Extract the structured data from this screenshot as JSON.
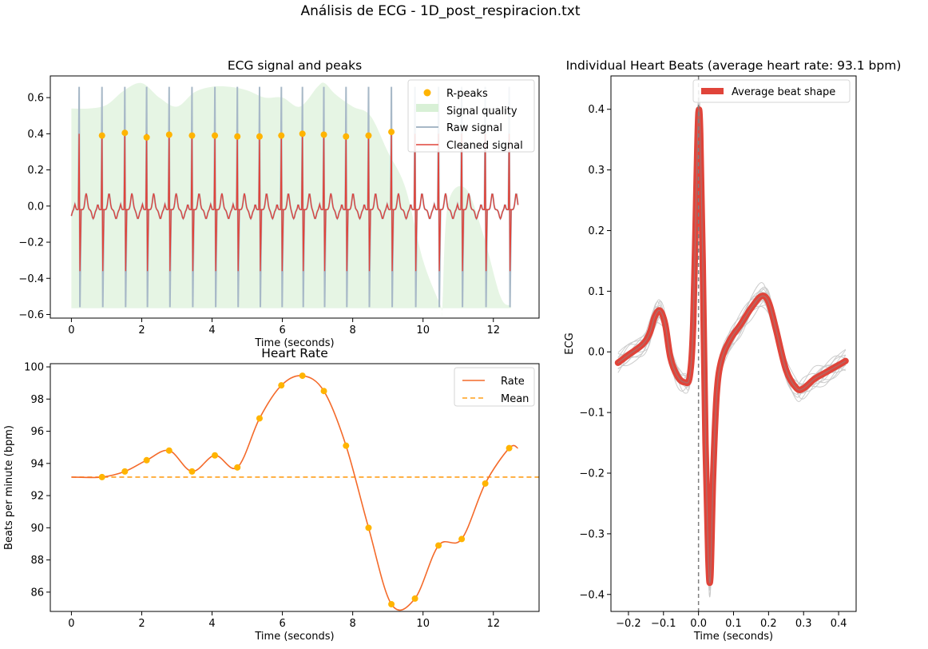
{
  "figure": {
    "suptitle": "Análisis de ECG - 1D_post_respiracion.txt"
  },
  "chart_data": [
    {
      "id": "ecg",
      "type": "line",
      "title": "ECG signal and peaks",
      "xlabel": "Time (seconds)",
      "ylabel": "",
      "xlim": [
        -0.6,
        13.3
      ],
      "ylim": [
        -0.62,
        0.72
      ],
      "xticks": [
        0,
        2,
        4,
        6,
        8,
        10,
        12
      ],
      "yticks": [
        -0.6,
        -0.4,
        -0.2,
        0.0,
        0.2,
        0.4,
        0.6
      ],
      "ytick_labels": [
        "−0.6",
        "−0.4",
        "−0.2",
        "0.0",
        "0.2",
        "0.4",
        "0.6"
      ],
      "legend": {
        "position": "top-right",
        "entries": [
          "R-peaks",
          "Signal quality",
          "Raw signal",
          "Cleaned signal"
        ]
      },
      "r_peaks": {
        "name": "R-peaks",
        "color": "#ffb400",
        "x": [
          0.87,
          1.52,
          2.14,
          2.78,
          3.43,
          4.08,
          4.72,
          5.35,
          5.97,
          6.57,
          7.18,
          7.81,
          8.45,
          9.1
        ],
        "y": [
          0.39,
          0.405,
          0.38,
          0.395,
          0.39,
          0.39,
          0.385,
          0.385,
          0.39,
          0.4,
          0.395,
          0.385,
          0.39,
          0.41
        ]
      },
      "beat_times": [
        0.22,
        0.87,
        1.52,
        2.14,
        2.78,
        3.43,
        4.08,
        4.72,
        5.35,
        5.97,
        6.57,
        7.18,
        7.81,
        8.45,
        9.1,
        9.77,
        10.44,
        11.1,
        11.77,
        12.45
      ],
      "signal_quality": {
        "name": "Signal quality",
        "color": "#d8f0d6",
        "x": [
          0,
          0.5,
          1.0,
          1.5,
          2.0,
          2.5,
          3.0,
          3.5,
          4.0,
          4.5,
          5.0,
          5.5,
          6.0,
          6.5,
          7.0,
          7.2,
          7.5,
          8.0,
          8.5,
          9.0,
          9.5,
          10.0,
          10.5,
          10.55,
          10.7,
          11.2,
          11.7,
          12.2,
          12.5
        ],
        "y": [
          0.54,
          0.54,
          0.56,
          0.64,
          0.68,
          0.6,
          0.55,
          0.63,
          0.66,
          0.66,
          0.64,
          0.6,
          0.6,
          0.55,
          0.66,
          0.68,
          0.62,
          0.55,
          0.5,
          0.3,
          0.1,
          -0.3,
          -0.55,
          -0.56,
          0.0,
          0.1,
          -0.15,
          -0.5,
          -0.55
        ],
        "baseline": -0.565
      },
      "raw_signal": {
        "name": "Raw signal",
        "color": "#a7b8c7",
        "peak": 0.66,
        "trough": -0.56
      },
      "cleaned_signal": {
        "name": "Cleaned signal",
        "color": "#e0443a",
        "peak": 0.4,
        "trough": -0.36
      }
    },
    {
      "id": "hr",
      "type": "line",
      "title": "Heart Rate",
      "xlabel": "Time (seconds)",
      "ylabel": "Beats per minute (bpm)",
      "xlim": [
        -0.6,
        13.3
      ],
      "ylim": [
        84.8,
        100.2
      ],
      "xticks": [
        0,
        2,
        4,
        6,
        8,
        10,
        12
      ],
      "yticks": [
        86,
        88,
        90,
        92,
        94,
        96,
        98,
        100
      ],
      "legend": {
        "position": "top-right",
        "entries": [
          "Rate",
          "Mean"
        ]
      },
      "rate": {
        "name": "Rate",
        "color": "#f46a2a",
        "x": [
          0,
          0.87,
          1.52,
          2.14,
          2.78,
          3.43,
          4.08,
          4.72,
          5.35,
          5.97,
          6.57,
          7.18,
          7.81,
          8.45,
          9.1,
          9.77,
          10.44,
          11.1,
          11.77,
          12.45,
          12.7
        ],
        "y": [
          93.15,
          93.15,
          93.5,
          94.2,
          94.8,
          93.5,
          94.5,
          93.75,
          96.8,
          98.85,
          99.45,
          98.5,
          95.1,
          90.0,
          85.25,
          85.6,
          88.9,
          89.3,
          92.75,
          94.95,
          94.95
        ]
      },
      "points": {
        "color": "#ffb400",
        "x": [
          0.87,
          1.52,
          2.14,
          2.78,
          3.43,
          4.08,
          4.72,
          5.35,
          5.97,
          6.57,
          7.18,
          7.81,
          8.45,
          9.1,
          9.77,
          10.44,
          11.1,
          11.77,
          12.45
        ],
        "y": [
          93.15,
          93.5,
          94.2,
          94.8,
          93.5,
          94.5,
          93.75,
          96.8,
          98.85,
          99.45,
          98.5,
          95.1,
          90.0,
          85.25,
          85.6,
          88.9,
          89.3,
          92.75,
          94.95
        ]
      },
      "mean": {
        "name": "Mean",
        "color": "#ff9f1a",
        "value": 93.15
      }
    },
    {
      "id": "beats",
      "type": "line",
      "title": "Individual Heart Beats (average heart rate: 93.1 bpm)",
      "xlabel": "Time (seconds)",
      "ylabel": "ECG",
      "xlim": [
        -0.25,
        0.45
      ],
      "ylim": [
        -0.428,
        0.455
      ],
      "xticks": [
        -0.2,
        -0.1,
        0.0,
        0.1,
        0.2,
        0.3,
        0.4
      ],
      "xtick_labels": [
        "−0.2",
        "−0.1",
        "0.0",
        "0.1",
        "0.2",
        "0.3",
        "0.4"
      ],
      "yticks": [
        -0.4,
        -0.3,
        -0.2,
        -0.1,
        0.0,
        0.1,
        0.2,
        0.3,
        0.4
      ],
      "ytick_labels": [
        "−0.4",
        "−0.3",
        "−0.2",
        "−0.1",
        "0.0",
        "0.1",
        "0.2",
        "0.3",
        "0.4"
      ],
      "legend": {
        "position": "top-right",
        "entries": [
          "Average beat shape"
        ]
      },
      "vline_x": 0.0,
      "average": {
        "name": "Average beat shape",
        "color": "#e0443a",
        "x": [
          -0.23,
          -0.2,
          -0.16,
          -0.14,
          -0.125,
          -0.11,
          -0.095,
          -0.08,
          -0.06,
          -0.04,
          -0.025,
          -0.015,
          -0.005,
          0.0,
          0.005,
          0.012,
          0.02,
          0.028,
          0.034,
          0.042,
          0.052,
          0.065,
          0.09,
          0.12,
          0.15,
          0.18,
          0.2,
          0.22,
          0.25,
          0.28,
          0.3,
          0.33,
          0.36,
          0.39,
          0.42
        ],
        "y": [
          -0.018,
          -0.005,
          0.012,
          0.03,
          0.058,
          0.068,
          0.045,
          -0.01,
          -0.04,
          -0.05,
          -0.04,
          0.05,
          0.3,
          0.395,
          0.36,
          0.15,
          -0.15,
          -0.34,
          -0.37,
          -0.2,
          -0.07,
          -0.015,
          0.02,
          0.045,
          0.072,
          0.092,
          0.082,
          0.04,
          -0.03,
          -0.06,
          -0.06,
          -0.045,
          -0.035,
          -0.025,
          -0.015
        ]
      },
      "individual_beats": {
        "color": "#c8c8c8",
        "count": 14
      }
    }
  ]
}
